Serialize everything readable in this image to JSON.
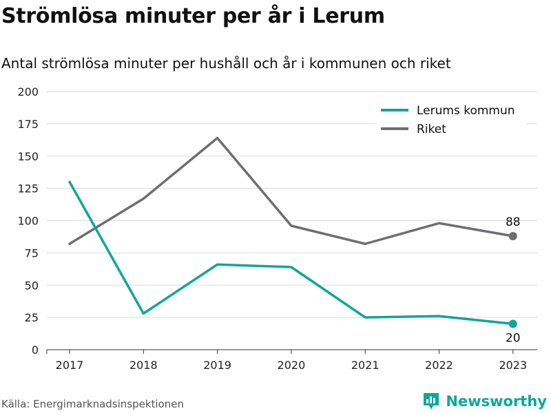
{
  "title": "Strömlösa minuter per år i Lerum",
  "subtitle": "Antal strömlösa minuter per hushåll och år i kommunen och riket",
  "source": "Källa: Energimarknadsinspektionen",
  "brand": "Newsworthy",
  "colors": {
    "lerum": "#10a698",
    "riket": "#6d6d72",
    "grid": "#dcdcdc",
    "brand": "#0ba89b"
  },
  "icons": {
    "brand_logo": "bar-chart-logo-icon"
  },
  "chart_data": {
    "type": "line",
    "title": "Strömlösa minuter per år i Lerum",
    "subtitle": "Antal strömlösa minuter per hushåll och år i kommunen och riket",
    "xlabel": "",
    "ylabel": "",
    "x": [
      "2017",
      "2018",
      "2019",
      "2020",
      "2021",
      "2022",
      "2023"
    ],
    "ylim": [
      0,
      200
    ],
    "yticks": [
      0,
      25,
      50,
      75,
      100,
      125,
      150,
      175,
      200
    ],
    "grid": true,
    "legend_position": "top-right",
    "series": [
      {
        "name": "Lerums kommun",
        "values": [
          130,
          28,
          66,
          64,
          25,
          26,
          20
        ],
        "end_label": "20"
      },
      {
        "name": "Riket",
        "values": [
          82,
          117,
          164,
          96,
          82,
          98,
          88
        ],
        "end_label": "88"
      }
    ]
  }
}
